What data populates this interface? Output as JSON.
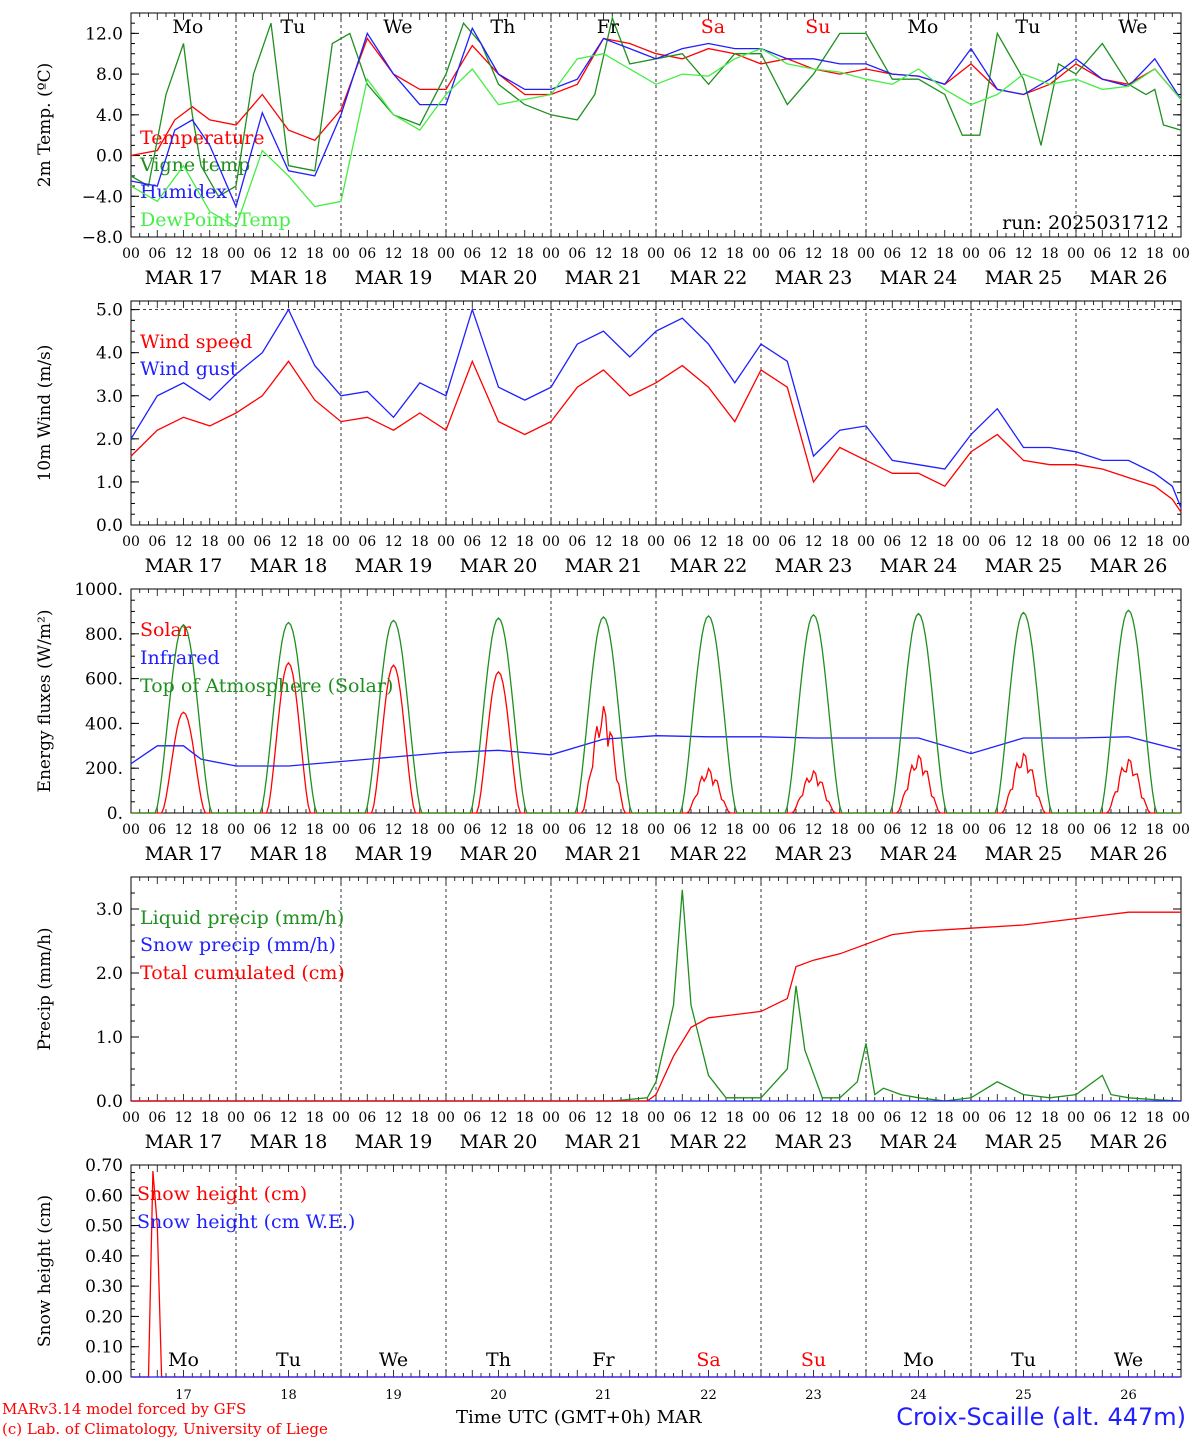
{
  "footer": {
    "model": "MARv3.14 model forced by GFS",
    "copyright": "(c) Lab. of Climatology, University of Liege",
    "time_axis": "Time UTC (GMT+0h) MAR",
    "station": "Croix-Scaille (alt. 447m)"
  },
  "days": {
    "names": [
      "Mo",
      "Tu",
      "We",
      "Th",
      "Fr",
      "Sa",
      "Su",
      "Mo",
      "Tu",
      "We"
    ],
    "weekend_flags": [
      false,
      false,
      false,
      false,
      false,
      true,
      true,
      false,
      false,
      false
    ],
    "dates": [
      "MAR 17",
      "MAR 18",
      "MAR 19",
      "MAR 20",
      "MAR 21",
      "MAR 22",
      "MAR 23",
      "MAR 24",
      "MAR 25",
      "MAR 26"
    ],
    "day_numbers": [
      "17",
      "18",
      "19",
      "20",
      "21",
      "22",
      "23",
      "24",
      "25",
      "26"
    ],
    "hour_ticks": [
      "00",
      "06",
      "12",
      "18"
    ],
    "final_tick": "00"
  },
  "colors": {
    "red": "#ff0000",
    "green": "#1f8f1f",
    "blue": "#1f1fff",
    "lightgreen": "#44ee44",
    "grid": "#000000"
  },
  "chart_data": [
    {
      "type": "line",
      "ylabel": "2m Temp. (ºC)",
      "ylim": [
        -8,
        14
      ],
      "yticks": [
        "12.0",
        "8.0",
        "4.0",
        "0.0",
        "−4.0",
        "−8.0"
      ],
      "ytick_values": [
        12,
        8,
        4,
        0,
        -4,
        -8
      ],
      "ref_line": 0,
      "annotation": "run: 2025031712",
      "x_unit": "hours since MAR 17 00 UTC",
      "series": [
        {
          "name": "Temperature",
          "color": "red",
          "x": [
            0,
            6,
            10,
            14,
            18,
            24,
            30,
            36,
            42,
            48,
            54,
            60,
            66,
            72,
            78,
            84,
            90,
            96,
            102,
            108,
            114,
            120,
            126,
            132,
            138,
            144,
            150,
            156,
            162,
            168,
            174,
            180,
            186,
            192,
            198,
            204,
            210,
            216,
            222,
            228,
            234,
            240
          ],
          "values": [
            0,
            0.5,
            3.5,
            4.8,
            3.5,
            3,
            6,
            2.5,
            1.5,
            4.5,
            11.5,
            8,
            6.5,
            6.5,
            10.8,
            8,
            6,
            6,
            7,
            11.5,
            11,
            10,
            9.5,
            10.5,
            10,
            9,
            9.5,
            8.5,
            8,
            8.5,
            8,
            7.8,
            7,
            9,
            6.5,
            6,
            7,
            9,
            7.5,
            7,
            8.5,
            5.5
          ]
        },
        {
          "name": "Vigne temp",
          "color": "green",
          "x": [
            0,
            4,
            8,
            12,
            14,
            16,
            20,
            24,
            28,
            32,
            36,
            42,
            46,
            50,
            54,
            60,
            66,
            72,
            76,
            80,
            84,
            90,
            96,
            102,
            106,
            110,
            114,
            120,
            126,
            132,
            138,
            144,
            150,
            156,
            162,
            168,
            174,
            180,
            186,
            190,
            194,
            198,
            204,
            208,
            212,
            216,
            222,
            228,
            232,
            234,
            236,
            240
          ],
          "values": [
            -2,
            -3,
            6,
            11,
            4,
            -1,
            -4,
            -3,
            8,
            13,
            -1,
            -1.5,
            11,
            12,
            7,
            4,
            3,
            8,
            13,
            11,
            7,
            5,
            4,
            3.5,
            6,
            13.5,
            9,
            9.5,
            10,
            7,
            10,
            10,
            5,
            8,
            12,
            12,
            7.5,
            7.5,
            6,
            2,
            2,
            12,
            7.5,
            1,
            9,
            8,
            11,
            7,
            6,
            6.5,
            3,
            2.5
          ]
        },
        {
          "name": "Humidex",
          "color": "blue",
          "x": [
            0,
            6,
            10,
            14,
            18,
            24,
            30,
            36,
            42,
            48,
            54,
            60,
            66,
            72,
            78,
            84,
            90,
            96,
            102,
            108,
            114,
            120,
            126,
            132,
            138,
            144,
            150,
            156,
            162,
            168,
            174,
            180,
            186,
            192,
            198,
            204,
            210,
            216,
            222,
            228,
            234,
            240
          ],
          "values": [
            -2.5,
            -3,
            2.5,
            3.5,
            1,
            -5,
            4.2,
            -1.5,
            -2,
            4,
            12,
            8,
            5,
            5,
            12.5,
            8,
            6.5,
            6.5,
            7.5,
            11.5,
            10.5,
            9.5,
            10.5,
            11,
            10.5,
            10.5,
            9.5,
            9.5,
            9,
            9,
            8,
            7.8,
            7,
            10.5,
            6.5,
            6,
            7.5,
            9.5,
            7.5,
            6.8,
            9.5,
            5.5
          ]
        },
        {
          "name": "DewPoint Temp",
          "color": "lightgreen",
          "x": [
            0,
            6,
            12,
            18,
            24,
            30,
            36,
            42,
            48,
            54,
            60,
            66,
            72,
            78,
            84,
            90,
            96,
            102,
            108,
            114,
            120,
            126,
            132,
            138,
            144,
            150,
            156,
            162,
            168,
            174,
            180,
            186,
            192,
            198,
            204,
            210,
            216,
            222,
            228,
            234,
            240
          ],
          "values": [
            -3,
            -4.5,
            -1,
            -5.5,
            -7,
            0.5,
            -2,
            -5,
            -4.5,
            7.5,
            4,
            2.5,
            6,
            8.5,
            5,
            5.5,
            6,
            9.5,
            10,
            8.5,
            7,
            8,
            7.8,
            9.5,
            10.5,
            9,
            8.5,
            8.2,
            7.5,
            7,
            8.5,
            6.5,
            5,
            6,
            8,
            7,
            7.5,
            6.5,
            6.8,
            8.5,
            5.5
          ]
        }
      ]
    },
    {
      "type": "line",
      "ylabel": "10m Wind (m/s)",
      "ylim": [
        0,
        5.2
      ],
      "yticks": [
        "5.0",
        "4.0",
        "3.0",
        "2.0",
        "1.0",
        "0.0"
      ],
      "ytick_values": [
        5,
        4,
        3,
        2,
        1,
        0
      ],
      "ref_line": 5,
      "x_unit": "hours since MAR 17 00 UTC",
      "series": [
        {
          "name": "Wind speed",
          "color": "red",
          "x": [
            0,
            6,
            12,
            18,
            24,
            30,
            36,
            42,
            48,
            54,
            60,
            66,
            72,
            78,
            84,
            90,
            96,
            102,
            108,
            114,
            120,
            126,
            132,
            138,
            144,
            150,
            156,
            162,
            168,
            174,
            180,
            186,
            192,
            198,
            204,
            210,
            216,
            222,
            228,
            234,
            238,
            240
          ],
          "values": [
            1.6,
            2.2,
            2.5,
            2.3,
            2.6,
            3,
            3.8,
            2.9,
            2.4,
            2.5,
            2.2,
            2.6,
            2.2,
            3.8,
            2.4,
            2.1,
            2.4,
            3.2,
            3.6,
            3,
            3.3,
            3.7,
            3.2,
            2.4,
            3.6,
            3.2,
            1,
            1.8,
            1.5,
            1.2,
            1.2,
            0.9,
            1.7,
            2.1,
            1.5,
            1.4,
            1.4,
            1.3,
            1.1,
            0.9,
            0.6,
            0.3
          ]
        },
        {
          "name": "Wind gust",
          "color": "blue",
          "x": [
            0,
            6,
            12,
            18,
            24,
            30,
            36,
            42,
            48,
            54,
            60,
            66,
            72,
            78,
            84,
            90,
            96,
            102,
            108,
            114,
            120,
            126,
            132,
            138,
            144,
            150,
            156,
            162,
            168,
            174,
            180,
            186,
            192,
            198,
            204,
            210,
            216,
            222,
            228,
            234,
            238,
            240
          ],
          "values": [
            2,
            3,
            3.3,
            2.9,
            3.5,
            4,
            5,
            3.7,
            3,
            3.1,
            2.5,
            3.3,
            3,
            5,
            3.2,
            2.9,
            3.2,
            4.2,
            4.5,
            3.9,
            4.5,
            4.8,
            4.2,
            3.3,
            4.2,
            3.8,
            1.6,
            2.2,
            2.3,
            1.5,
            1.4,
            1.3,
            2.1,
            2.7,
            1.8,
            1.8,
            1.7,
            1.5,
            1.5,
            1.2,
            0.9,
            0.4
          ]
        }
      ]
    },
    {
      "type": "line",
      "ylabel": "Energy fluxes (W/m²)",
      "ylim": [
        0,
        1000
      ],
      "yticks": [
        "1000.",
        "800.",
        "600.",
        "400.",
        "200.",
        "0."
      ],
      "ytick_values": [
        1000,
        800,
        600,
        400,
        200,
        0
      ],
      "x_unit": "hours since MAR 17 00 UTC",
      "series": [
        {
          "name": "Solar",
          "color": "red",
          "peaks": [
            450,
            670,
            660,
            630,
            480,
            200,
            190,
            260,
            270,
            245
          ]
        },
        {
          "name": "Infrared",
          "color": "blue",
          "x": [
            0,
            6,
            12,
            16,
            24,
            36,
            48,
            60,
            72,
            84,
            96,
            108,
            120,
            132,
            144,
            156,
            168,
            180,
            192,
            204,
            216,
            228,
            240
          ],
          "values": [
            220,
            300,
            300,
            240,
            210,
            210,
            230,
            250,
            270,
            280,
            260,
            330,
            345,
            340,
            340,
            335,
            335,
            335,
            265,
            335,
            335,
            340,
            280
          ]
        },
        {
          "name": "Top of Atmosphere (Solar)",
          "color": "green",
          "peaks": [
            840,
            850,
            860,
            870,
            875,
            880,
            885,
            890,
            895,
            905
          ]
        }
      ]
    },
    {
      "type": "line",
      "ylabel": "Precip (mm/h)",
      "ylim": [
        0,
        3.5
      ],
      "yticks": [
        "3.0",
        "2.0",
        "1.0",
        "0.0"
      ],
      "ytick_values": [
        3,
        2,
        1,
        0
      ],
      "x_unit": "hours since MAR 17 00 UTC",
      "series": [
        {
          "name": "Liquid precip (mm/h)",
          "color": "green",
          "x": [
            0,
            110,
            118,
            120,
            124,
            126,
            128,
            132,
            136,
            144,
            150,
            152,
            154,
            158,
            162,
            166,
            168,
            170,
            172,
            176,
            180,
            186,
            192,
            198,
            204,
            210,
            216,
            222,
            224,
            228,
            234,
            240
          ],
          "values": [
            0,
            0,
            0.05,
            0.3,
            1.5,
            3.3,
            1.5,
            0.4,
            0.05,
            0.05,
            0.5,
            1.8,
            0.8,
            0.05,
            0.05,
            0.3,
            0.9,
            0.1,
            0.2,
            0.1,
            0.05,
            0,
            0.05,
            0.3,
            0.1,
            0.05,
            0.1,
            0.4,
            0.1,
            0.05,
            0.02,
            0
          ]
        },
        {
          "name": "Snow precip (mm/h)",
          "color": "blue",
          "x": [
            0,
            240
          ],
          "values": [
            0,
            0
          ]
        },
        {
          "name": "Total cumulated (cm)",
          "color": "red",
          "x": [
            0,
            118,
            120,
            124,
            128,
            132,
            138,
            144,
            150,
            152,
            156,
            162,
            168,
            174,
            180,
            192,
            204,
            216,
            222,
            228,
            234,
            240
          ],
          "values": [
            0,
            0,
            0.1,
            0.7,
            1.15,
            1.3,
            1.35,
            1.4,
            1.6,
            2.1,
            2.2,
            2.3,
            2.45,
            2.6,
            2.65,
            2.7,
            2.75,
            2.85,
            2.9,
            2.95,
            2.95,
            2.95
          ]
        }
      ]
    },
    {
      "type": "line",
      "ylabel": "Snow height (cm)",
      "ylim": [
        0,
        0.7
      ],
      "yticks": [
        "0.70",
        "0.60",
        "0.50",
        "0.40",
        "0.30",
        "0.20",
        "0.10",
        "0.00"
      ],
      "ytick_values": [
        0.7,
        0.6,
        0.5,
        0.4,
        0.3,
        0.2,
        0.1,
        0
      ],
      "x_unit": "hours since MAR 17 00 UTC",
      "series": [
        {
          "name": "Snow height (cm)",
          "color": "red",
          "x": [
            0,
            4,
            5,
            6,
            7,
            240
          ],
          "values": [
            0,
            0,
            0.68,
            0.5,
            0,
            0
          ]
        },
        {
          "name": "Snow height (cm W.E.)",
          "color": "blue",
          "x": [
            0,
            240
          ],
          "values": [
            0,
            0
          ]
        }
      ]
    }
  ]
}
